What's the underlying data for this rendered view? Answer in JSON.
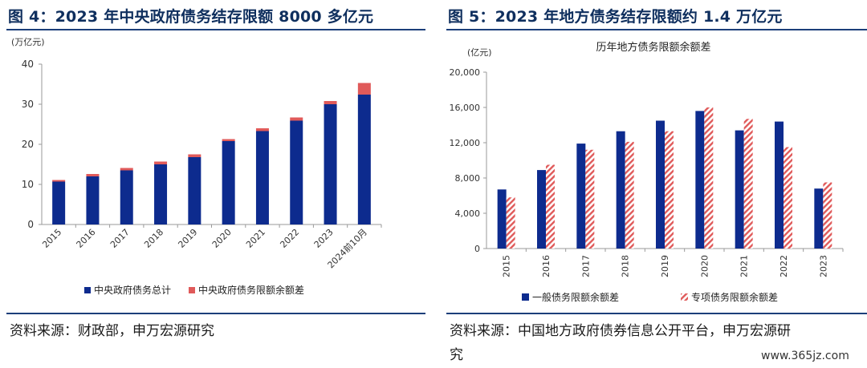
{
  "left": {
    "figure_title": "图 4：2023 年中央政府债务结存限额 8000 多亿元",
    "unit": "(万亿元)",
    "source": "资料来源：财政部，申万宏源研究"
  },
  "right": {
    "figure_title": "图 5：2023 年地方债务结存限额约 1.4 万亿元",
    "unit": "(亿元)",
    "source_line1": "资料来源：中国地方政府债券信息公开平台，申万宏源研",
    "source_line2": "究"
  },
  "watermark": "www.365jz.com",
  "colors": {
    "navy": "#0d2b8e",
    "red": "#e05a5a",
    "title": "#0f2f5e",
    "rule": "#1c3f7a"
  },
  "chart_data": [
    {
      "type": "bar",
      "stacked": true,
      "title": "",
      "ylabel": "(万亿元)",
      "categories": [
        "2015",
        "2016",
        "2017",
        "2018",
        "2019",
        "2020",
        "2021",
        "2022",
        "2023",
        "2024前10月"
      ],
      "ylim": [
        0,
        40
      ],
      "yticks": [
        0,
        10,
        20,
        30,
        40
      ],
      "legend_position": "bottom",
      "series": [
        {
          "name": "中央政府债务总计",
          "color": "#0d2b8e",
          "values": [
            10.7,
            12.0,
            13.5,
            15.0,
            16.8,
            20.8,
            23.3,
            25.9,
            30.0,
            32.4
          ]
        },
        {
          "name": "中央政府债务限额余额差",
          "color": "#e05a5a",
          "values": [
            0.4,
            0.6,
            0.6,
            0.7,
            0.7,
            0.5,
            0.7,
            0.8,
            0.8,
            2.9
          ]
        }
      ]
    },
    {
      "type": "bar",
      "stacked": false,
      "title": "历年地方债务限额余额差",
      "ylabel": "(亿元)",
      "categories": [
        "2015",
        "2016",
        "2017",
        "2018",
        "2019",
        "2020",
        "2021",
        "2022",
        "2023"
      ],
      "ylim": [
        0,
        20000
      ],
      "yticks": [
        0,
        4000,
        8000,
        12000,
        16000,
        20000
      ],
      "yticklabels": [
        "0",
        "4,000",
        "8,000",
        "12,000",
        "16,000",
        "20,000"
      ],
      "legend_position": "bottom",
      "series": [
        {
          "name": "一般债务限额余额差",
          "color": "#0d2b8e",
          "pattern": "solid",
          "values": [
            6700,
            8900,
            11900,
            13300,
            14500,
            15600,
            13400,
            14400,
            6800
          ]
        },
        {
          "name": "专项债务限额余额差",
          "color": "#e05a5a",
          "pattern": "hatched",
          "values": [
            5800,
            9500,
            11200,
            12100,
            13300,
            16000,
            14700,
            11500,
            7500
          ]
        }
      ]
    }
  ]
}
